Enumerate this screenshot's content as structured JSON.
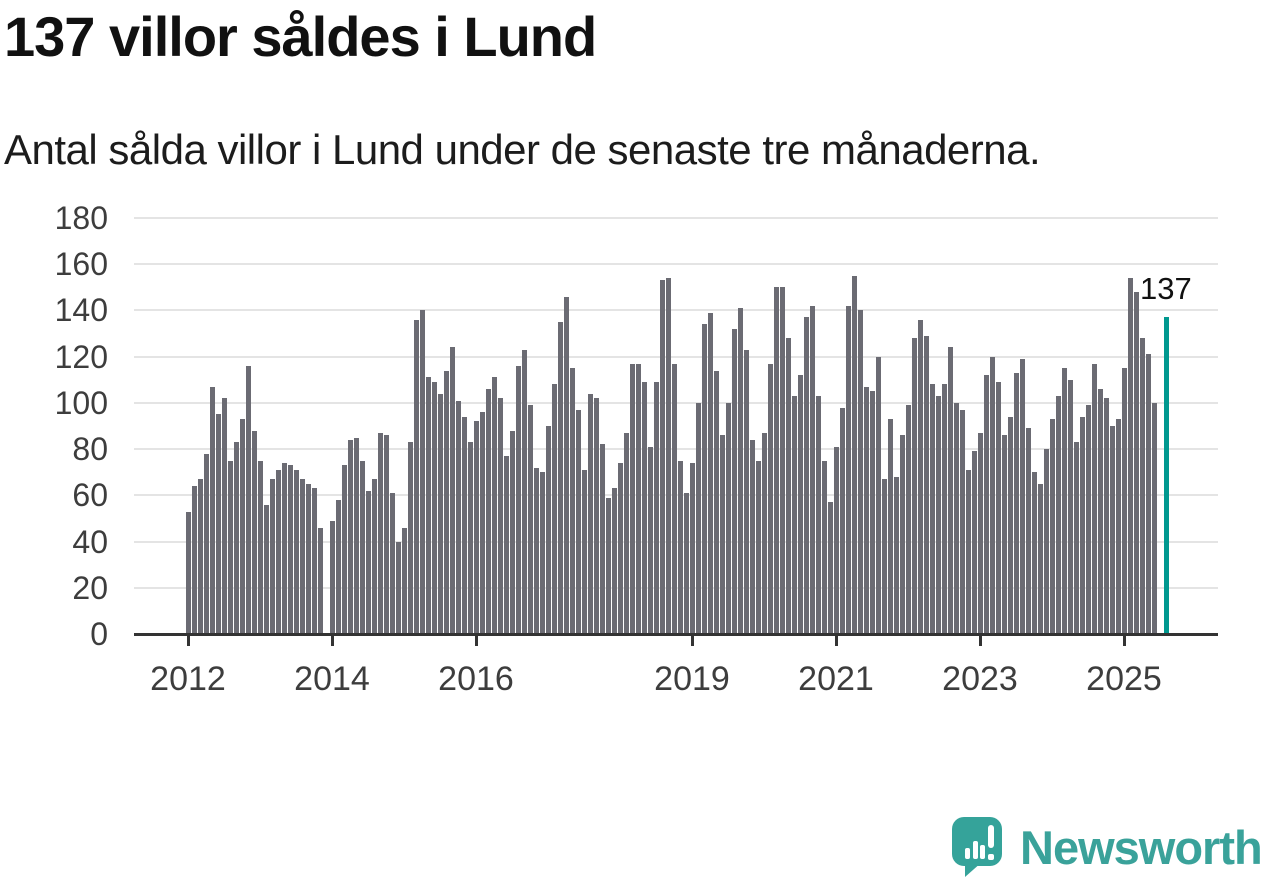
{
  "header": {
    "title": "137 villor såldes i Lund",
    "subtitle": "Antal sålda villor i Lund under de senaste tre månaderna."
  },
  "chart_data": {
    "type": "bar",
    "title": "137 villor såldes i Lund",
    "subtitle": "Antal sålda villor i Lund under de senaste tre månaderna.",
    "xlabel": "",
    "ylabel": "",
    "ylim": [
      0,
      180
    ],
    "grid": true,
    "legend": false,
    "y_ticks": [
      0,
      20,
      40,
      60,
      80,
      100,
      120,
      140,
      160,
      180
    ],
    "x_tick_labels": [
      "2012",
      "2014",
      "2016",
      "2019",
      "2021",
      "2023",
      "2025"
    ],
    "x_tick_slots": [
      0,
      24,
      48,
      84,
      108,
      132,
      156
    ],
    "series_start_year": "2012",
    "bar_color": "#6b6b73",
    "highlight_color": "#00988f",
    "highlight_index": 163,
    "annotation": {
      "text": "137",
      "index": 163,
      "value": 137
    },
    "values": [
      53,
      64,
      67,
      78,
      107,
      95,
      102,
      75,
      83,
      93,
      116,
      88,
      75,
      56,
      67,
      71,
      74,
      73,
      71,
      67,
      65,
      63,
      46,
      0,
      49,
      58,
      73,
      84,
      85,
      75,
      62,
      67,
      87,
      86,
      61,
      40,
      46,
      83,
      136,
      140,
      111,
      109,
      104,
      114,
      124,
      101,
      94,
      83,
      92,
      96,
      106,
      111,
      102,
      77,
      88,
      116,
      123,
      99,
      72,
      70,
      90,
      108,
      135,
      146,
      115,
      97,
      71,
      104,
      102,
      82,
      59,
      63,
      74,
      87,
      117,
      117,
      109,
      81,
      109,
      153,
      154,
      117,
      75,
      61,
      74,
      100,
      134,
      139,
      114,
      86,
      100,
      132,
      141,
      123,
      84,
      75,
      87,
      117,
      150,
      150,
      128,
      103,
      112,
      137,
      142,
      103,
      75,
      57,
      81,
      98,
      142,
      155,
      140,
      107,
      105,
      120,
      67,
      93,
      68,
      86,
      99,
      128,
      136,
      129,
      108,
      103,
      108,
      124,
      100,
      97,
      71,
      79,
      87,
      112,
      120,
      109,
      86,
      94,
      113,
      119,
      89,
      70,
      65,
      80,
      93,
      103,
      115,
      110,
      83,
      94,
      99,
      117,
      106,
      102,
      90,
      93,
      115,
      154,
      148,
      128,
      121,
      100,
      0,
      137
    ]
  },
  "footer": {
    "brand": "Newsworthy"
  },
  "colors": {
    "bar_gray": "#6b6b73",
    "accent_teal": "#00988f",
    "logo_teal": "#35a39a",
    "grid_gray": "#e4e4e4",
    "axis_dark": "#333333"
  }
}
